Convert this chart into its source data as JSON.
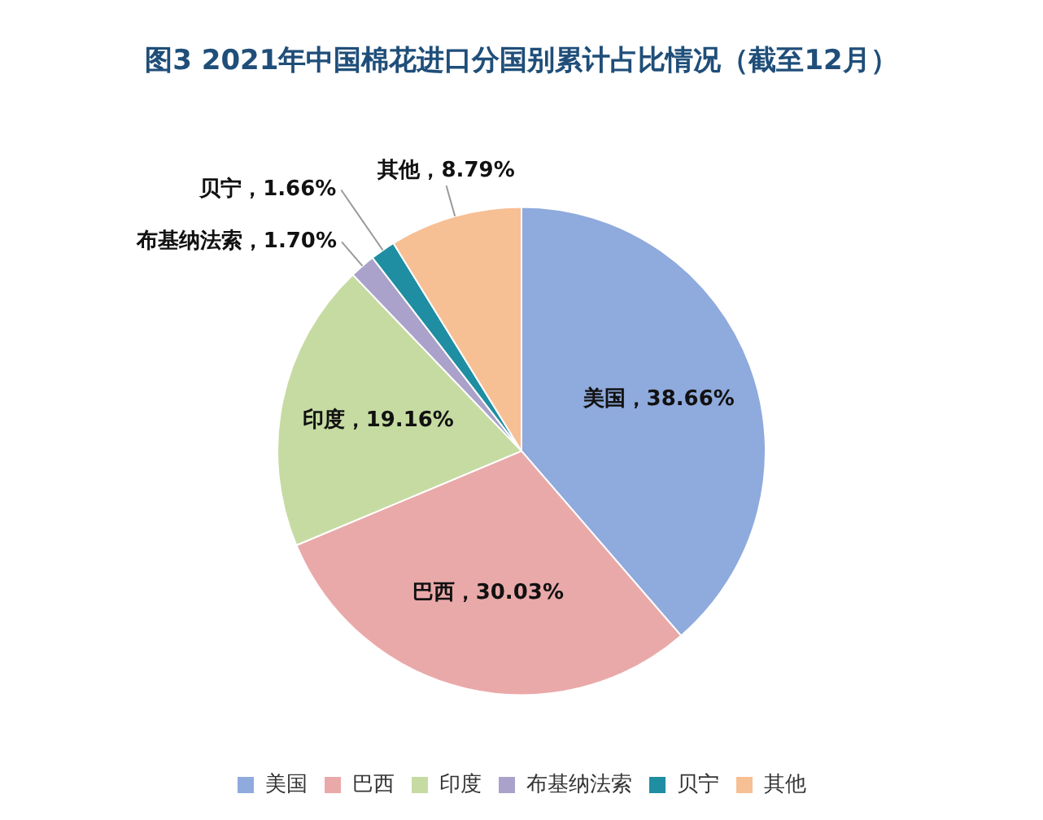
{
  "chart_data": {
    "type": "pie",
    "title": "图3 2021年中国棉花进口分国别累计占比情况（截至12月）",
    "categories": [
      "美国",
      "巴西",
      "印度",
      "布基纳法索",
      "贝宁",
      "其他"
    ],
    "values": [
      38.66,
      30.03,
      19.16,
      1.7,
      1.66,
      8.79
    ],
    "colors": [
      "#8faadc",
      "#eaa9a9",
      "#c6dba2",
      "#aaa2ca",
      "#1f8ea2",
      "#f7bf94"
    ],
    "value_labels": [
      "美国，38.66%",
      "巴西，30.03%",
      "印度，19.16%",
      "布基纳法索，1.70%",
      "贝宁，1.66%",
      "其他，8.79%"
    ],
    "legend": "bottom"
  }
}
